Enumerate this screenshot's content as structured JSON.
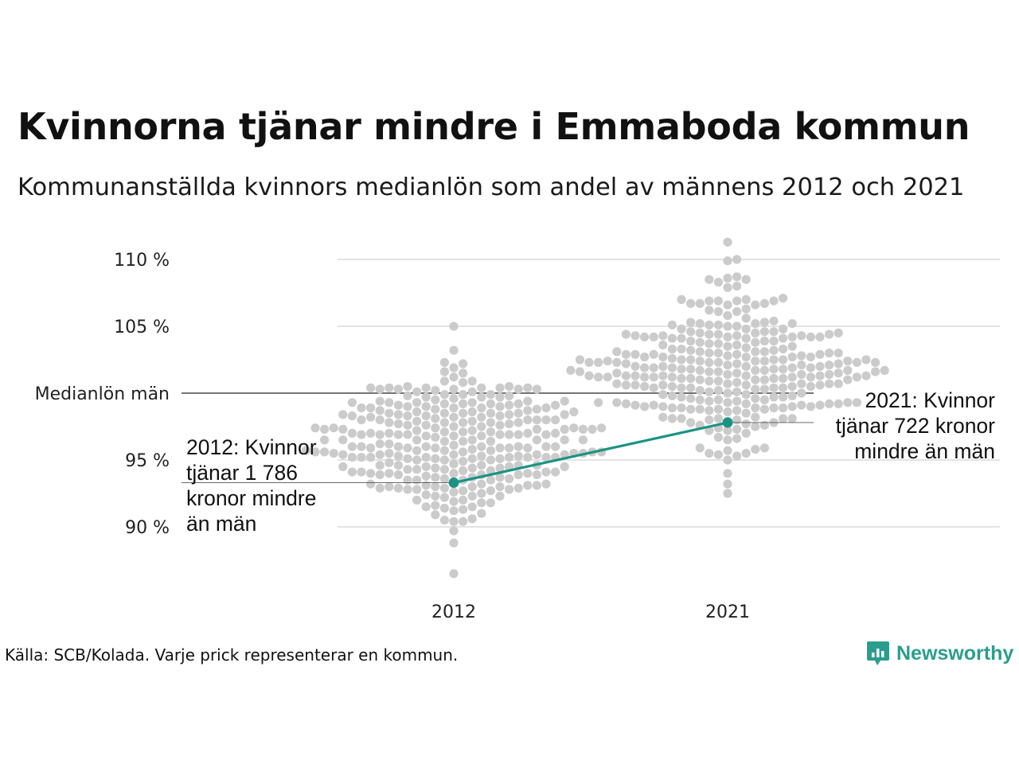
{
  "title": "Kvinnorna tjänar mindre i Emmaboda kommun",
  "subtitle": "Kommunanställda kvinnors medianlön som andel av männens 2012 och 2021",
  "source": "Källa: SCB/Kolada. Varje prick representerar en kommun.",
  "brand": {
    "name": "Newsworthy",
    "icon": "newsworthy-logo-icon",
    "color": "#2b9d8e"
  },
  "chart_data": {
    "type": "scatter",
    "subtype": "beeswarm",
    "categories": [
      "2012",
      "2021"
    ],
    "y_ticks": [
      {
        "value": 90,
        "label": "90 %"
      },
      {
        "value": 95,
        "label": "95 %"
      },
      {
        "value": 100,
        "label": "Medianlön män"
      },
      {
        "value": 105,
        "label": "105 %"
      },
      {
        "value": 110,
        "label": "110 %"
      }
    ],
    "ylim": [
      86,
      111.5
    ],
    "grid": true,
    "reference_line": {
      "value": 100,
      "label": "Medianlön män"
    },
    "highlight": {
      "values": [
        93.3,
        97.8
      ],
      "color": "#1a9385",
      "annotations": [
        {
          "category": "2012",
          "value": 93.3,
          "lines": [
            "2012: Kvinnor",
            "tjänar 1 786",
            "kronor mindre",
            "än män"
          ],
          "side": "left"
        },
        {
          "category": "2021",
          "value": 97.8,
          "lines": [
            "2021: Kvinnor",
            "tjänar 722 kronor",
            "mindre än män"
          ],
          "side": "right"
        }
      ]
    },
    "colors": {
      "dots": "#cbcbcb",
      "grid": "#e3e3e3",
      "reference": "#222222"
    },
    "series": [
      {
        "category": "2012",
        "stats": {
          "min": 86.5,
          "q1": 94.2,
          "median": 96.2,
          "q3": 98.0,
          "max": 105.0
        },
        "count": 290
      },
      {
        "category": "2021",
        "stats": {
          "min": 92.5,
          "q1": 99.6,
          "median": 101.8,
          "q3": 103.6,
          "max": 111.3
        },
        "count": 290
      }
    ]
  }
}
